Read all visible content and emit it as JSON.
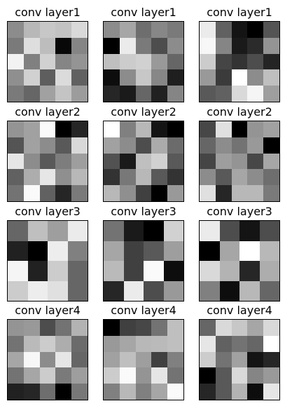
{
  "chart_data": [
    {
      "type": "heatmap",
      "title": "conv layer1",
      "cmap": "gray",
      "values": [
        [
          0.55,
          0.72,
          0.78,
          0.76,
          0.85
        ],
        [
          0.48,
          0.87,
          0.74,
          0.03,
          0.52
        ],
        [
          0.95,
          0.5,
          0.82,
          0.52,
          0.58
        ],
        [
          0.56,
          0.82,
          0.37,
          0.86,
          0.38
        ],
        [
          0.48,
          0.4,
          0.63,
          0.77,
          0.61
        ]
      ]
    },
    {
      "type": "heatmap",
      "title": "conv layer1",
      "cmap": "gray",
      "values": [
        [
          0.55,
          0.65,
          0.43,
          0.53,
          0.48
        ],
        [
          0.0,
          0.92,
          0.48,
          0.3,
          0.55
        ],
        [
          0.75,
          0.8,
          0.82,
          0.6,
          0.4
        ],
        [
          0.05,
          0.55,
          0.78,
          0.53,
          0.12
        ],
        [
          0.15,
          0.1,
          0.4,
          0.13,
          0.52
        ]
      ]
    },
    {
      "type": "heatmap",
      "title": "conv layer1",
      "cmap": "gray",
      "values": [
        [
          0.92,
          0.38,
          0.08,
          0.0,
          0.33
        ],
        [
          0.97,
          0.52,
          0.1,
          0.17,
          0.58
        ],
        [
          0.8,
          0.27,
          0.2,
          0.3,
          0.14
        ],
        [
          0.6,
          0.23,
          1.0,
          0.55,
          0.75
        ],
        [
          0.35,
          0.38,
          0.85,
          0.96,
          0.62
        ]
      ]
    },
    {
      "type": "heatmap",
      "title": "conv layer2",
      "cmap": "gray",
      "values": [
        [
          0.58,
          0.63,
          0.98,
          0.0,
          0.15
        ],
        [
          0.33,
          0.63,
          0.55,
          0.35,
          0.85
        ],
        [
          0.9,
          0.55,
          0.35,
          0.49,
          0.62
        ],
        [
          0.38,
          0.68,
          0.9,
          0.56,
          0.72
        ],
        [
          0.45,
          0.98,
          0.38,
          0.15,
          0.48
        ]
      ]
    },
    {
      "type": "heatmap",
      "title": "conv layer2",
      "cmap": "gray",
      "values": [
        [
          1.0,
          0.5,
          0.72,
          0.08,
          0.0
        ],
        [
          0.63,
          0.55,
          0.3,
          0.67,
          0.42
        ],
        [
          0.32,
          0.1,
          0.75,
          0.82,
          0.35
        ],
        [
          0.2,
          0.47,
          0.72,
          0.35,
          0.2
        ],
        [
          0.72,
          0.56,
          0.25,
          0.0,
          0.6
        ]
      ]
    },
    {
      "type": "heatmap",
      "title": "conv layer2",
      "cmap": "gray",
      "values": [
        [
          0.28,
          0.88,
          0.0,
          0.58,
          0.63
        ],
        [
          0.4,
          0.55,
          0.45,
          0.6,
          0.0
        ],
        [
          0.27,
          0.62,
          0.58,
          0.28,
          0.65
        ],
        [
          0.55,
          0.35,
          0.65,
          0.55,
          0.43
        ],
        [
          0.88,
          0.15,
          0.72,
          0.72,
          0.48
        ]
      ]
    },
    {
      "type": "heatmap",
      "title": "conv layer3",
      "cmap": "gray",
      "values": [
        [
          0.4,
          0.75,
          0.62,
          0.92
        ],
        [
          0.13,
          0.0,
          0.93,
          0.5
        ],
        [
          0.96,
          0.13,
          0.8,
          0.4
        ],
        [
          0.8,
          0.93,
          0.88,
          0.4
        ]
      ]
    },
    {
      "type": "heatmap",
      "title": "conv layer3",
      "cmap": "gray",
      "values": [
        [
          0.45,
          0.1,
          0.0,
          0.82
        ],
        [
          0.65,
          0.25,
          0.35,
          0.62
        ],
        [
          0.73,
          0.25,
          0.98,
          0.05
        ],
        [
          0.15,
          0.92,
          0.3,
          0.6
        ]
      ]
    },
    {
      "type": "heatmap",
      "title": "conv layer3",
      "cmap": "gray",
      "values": [
        [
          0.92,
          0.3,
          0.08,
          0.3
        ],
        [
          0.0,
          0.65,
          1.0,
          0.72
        ],
        [
          0.85,
          0.7,
          0.15,
          0.68
        ],
        [
          0.5,
          0.05,
          0.72,
          0.4
        ]
      ]
    },
    {
      "type": "heatmap",
      "title": "conv layer4",
      "cmap": "gray",
      "values": [
        [
          0.58,
          0.6,
          0.3,
          0.45,
          0.7
        ],
        [
          0.45,
          0.73,
          0.8,
          0.68,
          0.42
        ],
        [
          0.65,
          0.97,
          0.55,
          0.9,
          0.4
        ],
        [
          0.45,
          0.65,
          0.8,
          0.48,
          0.62
        ],
        [
          0.13,
          0.15,
          0.43,
          0.0,
          0.47
        ]
      ]
    },
    {
      "type": "heatmap",
      "title": "conv layer4",
      "cmap": "gray",
      "values": [
        [
          0.0,
          0.25,
          0.28,
          0.45,
          0.75
        ],
        [
          0.6,
          0.65,
          0.72,
          0.73,
          0.75
        ],
        [
          0.63,
          0.75,
          0.62,
          0.25,
          0.5
        ],
        [
          0.8,
          0.98,
          0.58,
          0.9,
          0.45
        ],
        [
          0.5,
          0.72,
          0.5,
          0.65,
          0.98
        ]
      ]
    },
    {
      "type": "heatmap",
      "title": "conv layer4",
      "cmap": "gray",
      "values": [
        [
          0.4,
          0.85,
          0.78,
          0.65,
          0.85
        ],
        [
          0.9,
          0.38,
          0.45,
          0.4,
          1.0
        ],
        [
          0.8,
          0.45,
          0.63,
          0.08,
          0.15
        ],
        [
          0.0,
          0.35,
          0.85,
          0.52,
          0.6
        ],
        [
          0.15,
          0.35,
          0.7,
          0.05,
          0.9
        ]
      ]
    }
  ]
}
